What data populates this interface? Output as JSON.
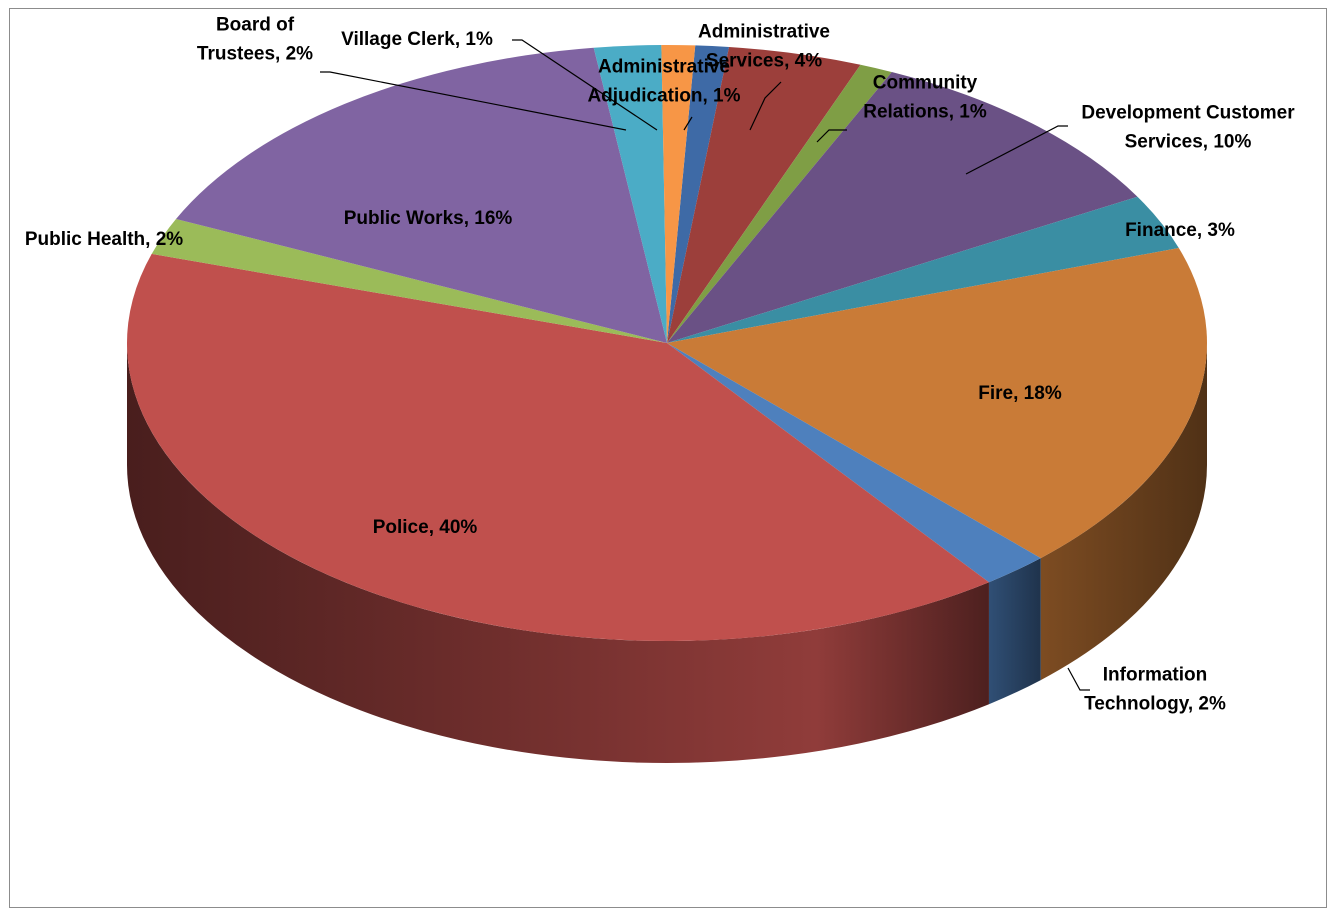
{
  "chart_data": {
    "type": "pie",
    "three_d": true,
    "title": "",
    "slices": [
      {
        "name": "Administrative Adjudication",
        "value": 1,
        "label": [
          "Administrative",
          "Adjudication, 1%"
        ],
        "color": "#3e6aa6"
      },
      {
        "name": "Administrative Services",
        "value": 4,
        "label": [
          "Administrative",
          "Services, 4%"
        ],
        "color": "#9c3f3b"
      },
      {
        "name": "Community Relations",
        "value": 1,
        "label": [
          "Community",
          "Relations, 1%"
        ],
        "color": "#7f9e45"
      },
      {
        "name": "Development Customer Services",
        "value": 10,
        "label": [
          "Development Customer",
          "Services, 10%"
        ],
        "color": "#6a5185"
      },
      {
        "name": "Finance",
        "value": 3,
        "label": [
          "Finance, 3%"
        ],
        "color": "#3a8ea3"
      },
      {
        "name": "Fire",
        "value": 18,
        "label": [
          "Fire, 18%"
        ],
        "color": "#c97b37"
      },
      {
        "name": "Information Technology",
        "value": 2,
        "label": [
          "Information",
          "Technology, 2%"
        ],
        "color": "#4e80bd"
      },
      {
        "name": "Police",
        "value": 40,
        "label": [
          "Police, 40%"
        ],
        "color": "#c0504d"
      },
      {
        "name": "Public Health",
        "value": 2,
        "label": [
          "Public Health, 2%"
        ],
        "color": "#9bbb59"
      },
      {
        "name": "Public Works",
        "value": 16,
        "label": [
          "Public Works, 16%"
        ],
        "color": "#8064a2"
      },
      {
        "name": "Board of Trustees",
        "value": 2,
        "label": [
          "Board of",
          "Trustees, 2%"
        ],
        "color": "#4bacc6"
      },
      {
        "name": "Village Clerk",
        "value": 1,
        "label": [
          "Village Clerk, 1%"
        ],
        "color": "#f79646"
      }
    ]
  }
}
